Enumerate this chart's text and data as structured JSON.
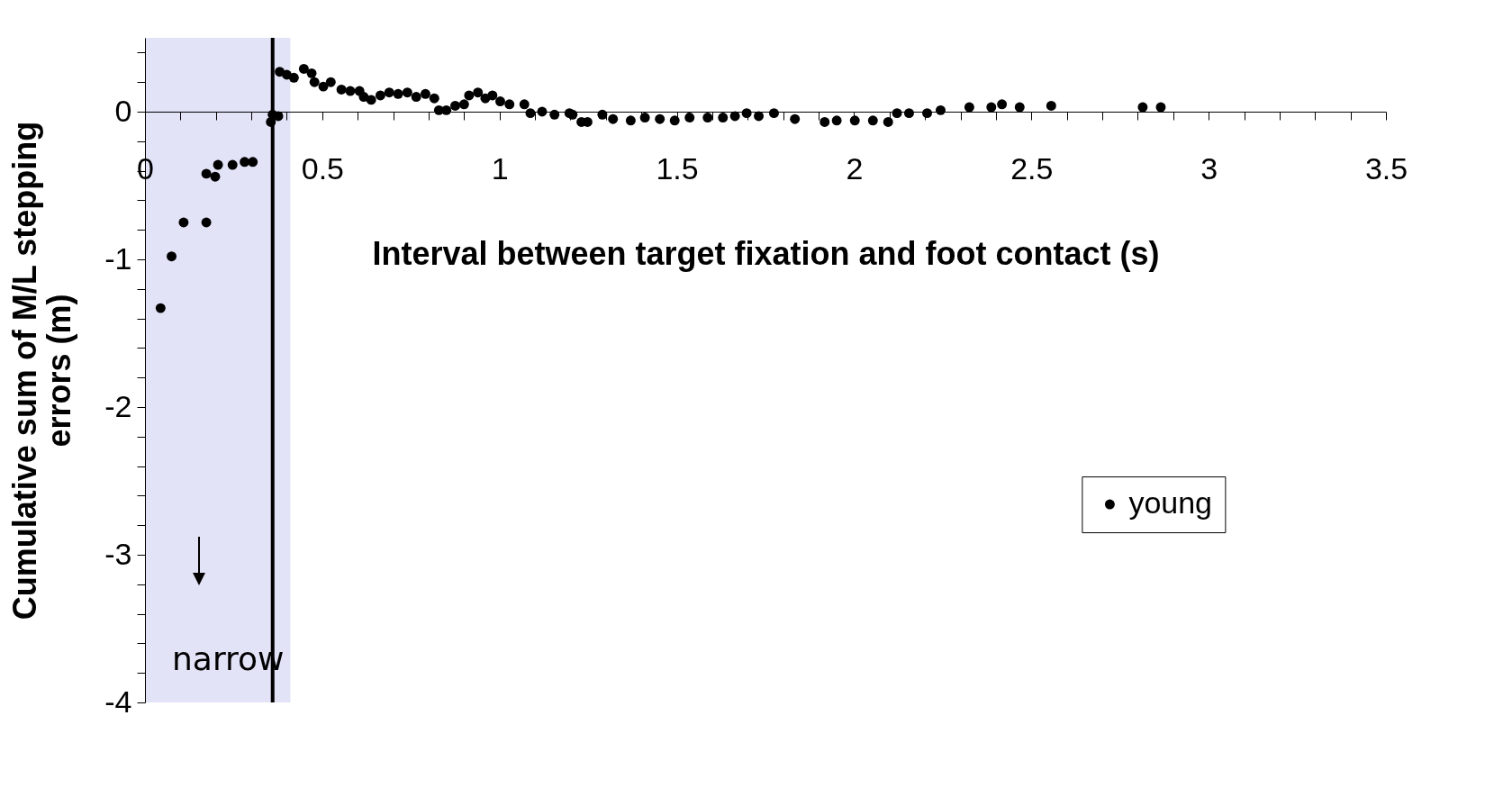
{
  "chart_data": {
    "type": "scatter",
    "xlabel": "Interval between target fixation and foot contact (s)",
    "ylabel": "Cumulative sum of M/L stepping errors (m)",
    "xlim": [
      0,
      3.5
    ],
    "xticks": [
      0,
      {
        "value": 0.1,
        "label": null
      },
      {
        "value": 0.2,
        "label": null
      },
      {
        "value": 0.3,
        "label": null
      },
      {
        "value": 0.4,
        "label": null
      },
      0.5,
      {
        "value": 0.6,
        "label": null
      },
      {
        "value": 0.7,
        "label": null
      },
      {
        "value": 0.8,
        "label": null
      },
      {
        "value": 0.9,
        "label": null
      },
      1,
      {
        "value": 1.1,
        "label": null
      },
      {
        "value": 1.2,
        "label": null
      },
      {
        "value": 1.3,
        "label": null
      },
      {
        "value": 1.4,
        "label": null
      },
      1.5,
      {
        "value": 1.6,
        "label": null
      },
      {
        "value": 1.7,
        "label": null
      },
      {
        "value": 1.8,
        "label": null
      },
      {
        "value": 1.9,
        "label": null
      },
      2,
      {
        "value": 2.1,
        "label": null
      },
      {
        "value": 2.2,
        "label": null
      },
      {
        "value": 2.3,
        "label": null
      },
      {
        "value": 2.4,
        "label": null
      },
      2.5,
      {
        "value": 2.6,
        "label": null
      },
      {
        "value": 2.7,
        "label": null
      },
      {
        "value": 2.8,
        "label": null
      },
      {
        "value": 2.9,
        "label": null
      },
      3,
      {
        "value": 3.1,
        "label": null
      },
      {
        "value": 3.2,
        "label": null
      },
      {
        "value": 3.3,
        "label": null
      },
      {
        "value": 3.4,
        "label": null
      },
      3.5
    ],
    "ylim": [
      -4,
      0.5
    ],
    "yticks": [
      -4,
      {
        "value": -3.8,
        "label": null
      },
      {
        "value": -3.6,
        "label": null
      },
      {
        "value": -3.4,
        "label": null
      },
      {
        "value": -3.2,
        "label": null
      },
      -3,
      {
        "value": -2.8,
        "label": null
      },
      {
        "value": -2.6,
        "label": null
      },
      {
        "value": -2.4,
        "label": null
      },
      {
        "value": -2.2,
        "label": null
      },
      -2,
      {
        "value": -1.8,
        "label": null
      },
      {
        "value": -1.6,
        "label": null
      },
      {
        "value": -1.4,
        "label": null
      },
      {
        "value": -1.2,
        "label": null
      },
      -1,
      {
        "value": -0.8,
        "label": null
      },
      {
        "value": -0.6,
        "label": null
      },
      {
        "value": -0.4,
        "label": null
      },
      {
        "value": -0.2,
        "label": null
      },
      0,
      {
        "value": 0.2,
        "label": null
      },
      {
        "value": 0.4,
        "label": null
      }
    ],
    "grid": false,
    "legend": "right",
    "marker": "circle",
    "ref_lines": [
      {
        "axis": "x",
        "value": 0.36,
        "color": "#000000"
      }
    ],
    "bands": [
      {
        "axis": "x",
        "from": 0,
        "to": 0.41,
        "label": "narrow",
        "color": "#e3e3f8"
      }
    ],
    "series": [
      {
        "name": "young",
        "color": "#000000",
        "x": [
          0.044,
          0.075,
          0.109,
          0.173,
          0.173,
          0.198,
          0.206,
          0.247,
          0.281,
          0.304,
          0.355,
          0.36,
          0.376,
          0.38,
          0.4,
          0.42,
          0.448,
          0.47,
          0.478,
          0.503,
          0.524,
          0.554,
          0.579,
          0.605,
          0.617,
          0.638,
          0.664,
          0.689,
          0.714,
          0.74,
          0.765,
          0.791,
          0.816,
          0.829,
          0.85,
          0.875,
          0.9,
          0.914,
          0.939,
          0.96,
          0.98,
          1.002,
          1.028,
          1.07,
          1.087,
          1.12,
          1.155,
          1.197,
          1.206,
          1.231,
          1.248,
          1.29,
          1.32,
          1.37,
          1.41,
          1.452,
          1.494,
          1.536,
          1.587,
          1.63,
          1.664,
          1.697,
          1.731,
          1.774,
          1.833,
          1.917,
          1.951,
          2.002,
          2.053,
          2.096,
          2.121,
          2.155,
          2.206,
          2.244,
          2.325,
          2.387,
          2.417,
          2.467,
          2.556,
          2.814,
          2.865
        ],
        "values": [
          -1.33,
          -0.98,
          -0.75,
          -0.75,
          -0.42,
          -0.44,
          -0.36,
          -0.36,
          -0.34,
          -0.34,
          -0.07,
          -0.02,
          -0.03,
          0.27,
          0.25,
          0.23,
          0.29,
          0.26,
          0.2,
          0.17,
          0.2,
          0.15,
          0.14,
          0.14,
          0.1,
          0.08,
          0.11,
          0.13,
          0.12,
          0.13,
          0.1,
          0.12,
          0.09,
          0.01,
          0.01,
          0.04,
          0.05,
          0.11,
          0.13,
          0.09,
          0.11,
          0.07,
          0.05,
          0.05,
          -0.01,
          0,
          -0.02,
          -0.01,
          -0.02,
          -0.07,
          -0.07,
          -0.02,
          -0.05,
          -0.06,
          -0.04,
          -0.05,
          -0.06,
          -0.04,
          -0.04,
          -0.04,
          -0.03,
          -0.01,
          -0.03,
          -0.01,
          -0.05,
          -0.07,
          -0.06,
          -0.06,
          -0.06,
          -0.07,
          -0.01,
          -0.01,
          -0.01,
          0.01,
          0.03,
          0.03,
          0.05,
          0.03,
          0.04,
          0.03,
          0.03
        ]
      }
    ]
  }
}
